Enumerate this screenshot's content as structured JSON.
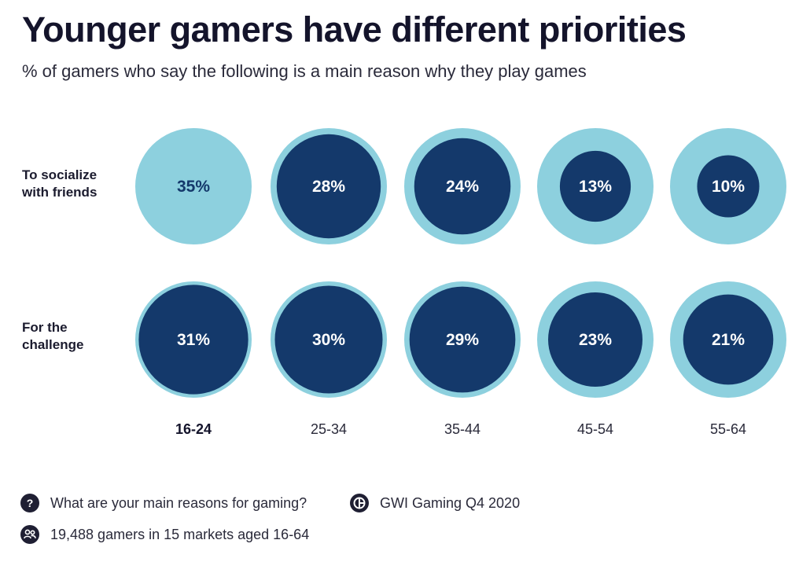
{
  "title": "Younger gamers have different priorities",
  "subtitle": "% of gamers who say the following is a main reason why they play games",
  "colors": {
    "outer": "#8dd0de",
    "inner": "#14396b",
    "text_on_dark": "#ffffff",
    "text_on_light": "#14396b"
  },
  "chart_data": {
    "type": "bubble-comparison",
    "categories": [
      "16-24",
      "25-34",
      "35-44",
      "45-54",
      "55-64"
    ],
    "highlight_category": "16-24",
    "reference_value": 35,
    "series": [
      {
        "name": "To socialize with friends",
        "label_lines": [
          "To socialize",
          "with friends"
        ],
        "values": [
          35,
          28,
          24,
          13,
          10
        ]
      },
      {
        "name": "For the challenge",
        "label_lines": [
          "For the",
          "challenge"
        ],
        "values": [
          31,
          30,
          29,
          23,
          21
        ]
      }
    ],
    "value_suffix": "%"
  },
  "footer": {
    "question": "What are your main reasons for gaming?",
    "source": "GWI Gaming Q4 2020",
    "sample": "19,488 gamers in 15 markets aged 16-64",
    "question_icon": "question-icon",
    "source_icon": "gwi-logo-icon",
    "sample_icon": "people-icon"
  }
}
